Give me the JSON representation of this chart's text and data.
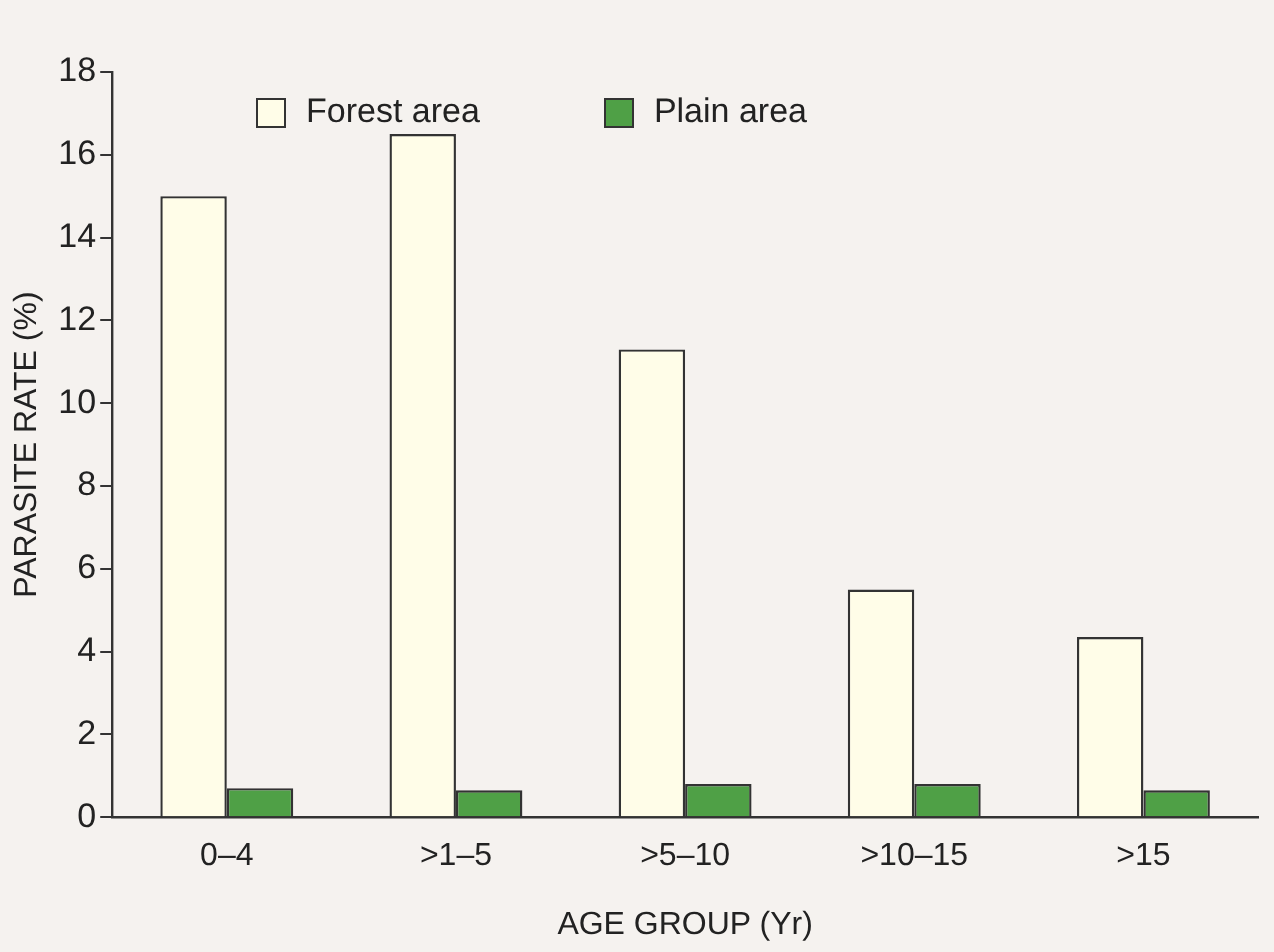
{
  "chart_data": {
    "type": "bar",
    "xlabel": "AGE GROUP (Yr)",
    "ylabel": "PARASITE RATE (%)",
    "categories": [
      "0–4",
      ">1–5",
      ">5–10",
      ">10–15",
      ">15"
    ],
    "series": [
      {
        "name": "Forest area",
        "color": "#fffde8",
        "values": [
          15.0,
          16.5,
          11.3,
          5.5,
          4.35
        ]
      },
      {
        "name": "Plain area",
        "color": "#4fa046",
        "values": [
          0.7,
          0.65,
          0.8,
          0.8,
          0.65
        ]
      }
    ],
    "ylim": [
      0,
      18
    ],
    "yticks": [
      0,
      2,
      4,
      6,
      8,
      10,
      12,
      14,
      16,
      18
    ],
    "grid": false,
    "legend": "top"
  }
}
